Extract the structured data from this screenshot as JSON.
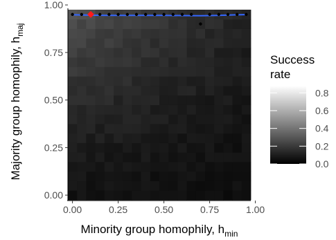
{
  "chart_data": {
    "type": "heatmap",
    "x_axis": {
      "label_main": "Minority group homophily, h",
      "label_sub": "min",
      "ticks": [
        "0.00",
        "0.25",
        "0.50",
        "0.75",
        "1.00"
      ],
      "tick_values": [
        0,
        0.25,
        0.5,
        0.75,
        1.0
      ],
      "range": [
        0.0,
        1.0
      ]
    },
    "y_axis": {
      "label_main": "Majority group homophily, h",
      "label_sub": "maj",
      "ticks": [
        "0.00",
        "0.25",
        "0.50",
        "0.75",
        "1.00"
      ],
      "tick_values": [
        0,
        0.25,
        0.5,
        0.75,
        1.0
      ],
      "range": [
        0.0,
        1.0
      ]
    },
    "grid": {
      "x_centers": [
        0.0,
        0.05,
        0.1,
        0.15,
        0.2,
        0.25,
        0.3,
        0.35,
        0.4,
        0.45,
        0.5,
        0.55,
        0.6,
        0.65,
        0.7,
        0.75,
        0.8,
        0.85,
        0.9,
        0.95
      ],
      "y_centers": [
        0.0,
        0.05,
        0.1,
        0.15,
        0.2,
        0.25,
        0.3,
        0.35,
        0.4,
        0.45,
        0.5,
        0.55,
        0.6,
        0.65,
        0.7,
        0.75,
        0.8,
        0.85,
        0.9,
        0.95
      ],
      "cell_size": 0.05
    },
    "legend": {
      "title_lines": [
        "Success",
        "rate"
      ],
      "ticks": [
        "0.0",
        "0.2",
        "0.4",
        "0.6",
        "0.8"
      ],
      "tick_values": [
        0.0,
        0.2,
        0.4,
        0.6,
        0.8
      ],
      "range": [
        0.0,
        0.88
      ],
      "color_low": "#000000",
      "color_high": "#ffffff"
    },
    "optimal_points": [
      {
        "x": 0.0,
        "y": 0.95
      },
      {
        "x": 0.05,
        "y": 0.95
      },
      {
        "x": 0.1,
        "y": 0.95
      },
      {
        "x": 0.15,
        "y": 0.95
      },
      {
        "x": 0.2,
        "y": 0.95
      },
      {
        "x": 0.25,
        "y": 0.95
      },
      {
        "x": 0.3,
        "y": 0.95
      },
      {
        "x": 0.35,
        "y": 0.95
      },
      {
        "x": 0.4,
        "y": 0.95
      },
      {
        "x": 0.45,
        "y": 0.95
      },
      {
        "x": 0.5,
        "y": 0.95
      },
      {
        "x": 0.55,
        "y": 0.95
      },
      {
        "x": 0.6,
        "y": 0.95
      },
      {
        "x": 0.65,
        "y": 0.95
      },
      {
        "x": 0.7,
        "y": 0.9
      },
      {
        "x": 0.75,
        "y": 0.95
      },
      {
        "x": 0.8,
        "y": 0.95
      },
      {
        "x": 0.85,
        "y": 0.95
      },
      {
        "x": 0.9,
        "y": 0.95
      },
      {
        "x": 0.95,
        "y": 0.95
      }
    ],
    "highlight_point": {
      "x": 0.1,
      "y": 0.95,
      "color": "#ff1a1a"
    },
    "trend_line": {
      "x": [
        0.0,
        0.1,
        0.2,
        0.3,
        0.4,
        0.5,
        0.6,
        0.7,
        0.8,
        0.9,
        0.95
      ],
      "y": [
        0.948,
        0.946,
        0.945,
        0.945,
        0.945,
        0.945,
        0.944,
        0.943,
        0.945,
        0.948,
        0.949
      ],
      "color": "#3366ff"
    }
  }
}
